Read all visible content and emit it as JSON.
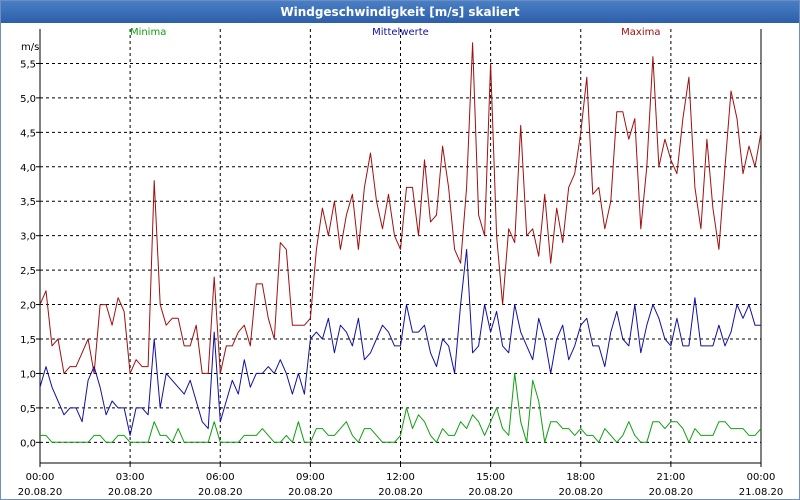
{
  "window": {
    "title": "Windgeschwindigkeit [m/s] skaliert"
  },
  "chart_data": {
    "type": "line",
    "title": "Windgeschwindigkeit [m/s] skaliert",
    "ylabel": "m/s",
    "xlabel": "",
    "ylim": [
      -0.3,
      6.0
    ],
    "xlim": [
      0,
      24
    ],
    "grid": true,
    "y_ticks": [
      {
        "value": 0.0,
        "label": "0,0"
      },
      {
        "value": 0.5,
        "label": "0,5"
      },
      {
        "value": 1.0,
        "label": "1,0"
      },
      {
        "value": 1.5,
        "label": "1,5"
      },
      {
        "value": 2.0,
        "label": "2,0"
      },
      {
        "value": 2.5,
        "label": "2,5"
      },
      {
        "value": 3.0,
        "label": "3,0"
      },
      {
        "value": 3.5,
        "label": "3,5"
      },
      {
        "value": 4.0,
        "label": "4,0"
      },
      {
        "value": 4.5,
        "label": "4,5"
      },
      {
        "value": 5.0,
        "label": "5,0"
      },
      {
        "value": 5.5,
        "label": "5,5"
      }
    ],
    "x_ticks": [
      {
        "value": 0,
        "time": "00:00",
        "date": "20.08.20"
      },
      {
        "value": 3,
        "time": "03:00",
        "date": "20.08.20"
      },
      {
        "value": 6,
        "time": "06:00",
        "date": "20.08.20"
      },
      {
        "value": 9,
        "time": "09:00",
        "date": "20.08.20"
      },
      {
        "value": 12,
        "time": "12:00",
        "date": "20.08.20"
      },
      {
        "value": 15,
        "time": "15:00",
        "date": "20.08.20"
      },
      {
        "value": 18,
        "time": "18:00",
        "date": "20.08.20"
      },
      {
        "value": 21,
        "time": "21:00",
        "date": "20.08.20"
      },
      {
        "value": 24,
        "time": "00:00",
        "date": "21.08.20"
      }
    ],
    "series": [
      {
        "name": "Maxima",
        "color": "#a01010",
        "x": [
          0,
          0.2,
          0.4,
          0.6,
          0.8,
          1.0,
          1.2,
          1.4,
          1.6,
          1.8,
          2.0,
          2.2,
          2.4,
          2.6,
          2.8,
          3.0,
          3.2,
          3.4,
          3.6,
          3.8,
          4.0,
          4.2,
          4.4,
          4.6,
          4.8,
          5.0,
          5.2,
          5.4,
          5.6,
          5.8,
          6.0,
          6.2,
          6.4,
          6.6,
          6.8,
          7.0,
          7.2,
          7.4,
          7.6,
          7.8,
          8.0,
          8.2,
          8.4,
          8.6,
          8.8,
          9.0,
          9.2,
          9.4,
          9.6,
          9.8,
          10.0,
          10.2,
          10.4,
          10.6,
          10.8,
          11.0,
          11.2,
          11.4,
          11.6,
          11.8,
          12.0,
          12.2,
          12.4,
          12.6,
          12.8,
          13.0,
          13.2,
          13.4,
          13.6,
          13.8,
          14.0,
          14.2,
          14.4,
          14.6,
          14.8,
          15.0,
          15.2,
          15.4,
          15.6,
          15.8,
          16.0,
          16.2,
          16.4,
          16.6,
          16.8,
          17.0,
          17.2,
          17.4,
          17.6,
          17.8,
          18.0,
          18.2,
          18.4,
          18.6,
          18.8,
          19.0,
          19.2,
          19.4,
          19.6,
          19.8,
          20.0,
          20.2,
          20.4,
          20.6,
          20.8,
          21.0,
          21.2,
          21.4,
          21.6,
          21.8,
          22.0,
          22.2,
          22.4,
          22.6,
          22.8,
          23.0,
          23.2,
          23.4,
          23.6,
          23.8,
          24.0
        ],
        "values": [
          2.0,
          2.2,
          1.4,
          1.5,
          1.0,
          1.1,
          1.1,
          1.3,
          1.5,
          1.0,
          2.0,
          2.0,
          1.7,
          2.1,
          1.9,
          1.0,
          1.2,
          1.1,
          1.1,
          3.8,
          2.0,
          1.7,
          1.8,
          1.8,
          1.4,
          1.4,
          1.7,
          1.0,
          1.0,
          2.4,
          1.0,
          1.4,
          1.4,
          1.6,
          1.7,
          1.4,
          2.3,
          2.3,
          1.8,
          1.5,
          2.9,
          2.8,
          1.7,
          1.7,
          1.7,
          1.8,
          2.8,
          3.4,
          3.0,
          3.5,
          2.8,
          3.3,
          3.6,
          2.8,
          3.7,
          4.2,
          3.5,
          3.1,
          3.6,
          3.0,
          2.8,
          3.7,
          3.7,
          3.0,
          4.1,
          3.2,
          3.3,
          4.3,
          3.7,
          2.8,
          2.6,
          3.7,
          5.8,
          3.3,
          3.0,
          5.5,
          3.0,
          2.0,
          3.1,
          2.9,
          4.6,
          3.0,
          3.1,
          2.7,
          3.6,
          2.6,
          3.4,
          2.9,
          3.7,
          3.9,
          4.5,
          5.3,
          3.6,
          3.7,
          3.1,
          3.5,
          4.8,
          4.8,
          4.4,
          4.7,
          3.1,
          4.0,
          5.6,
          4.0,
          4.4,
          4.1,
          3.9,
          4.7,
          5.3,
          3.7,
          3.1,
          4.4,
          3.4,
          2.8,
          4.0,
          5.1,
          4.7,
          3.9,
          4.3,
          4.0,
          4.5
        ]
      },
      {
        "name": "Mittelwerte",
        "color": "#1010a0",
        "x": [
          0,
          0.2,
          0.4,
          0.6,
          0.8,
          1.0,
          1.2,
          1.4,
          1.6,
          1.8,
          2.0,
          2.2,
          2.4,
          2.6,
          2.8,
          3.0,
          3.2,
          3.4,
          3.6,
          3.8,
          4.0,
          4.2,
          4.4,
          4.6,
          4.8,
          5.0,
          5.2,
          5.4,
          5.6,
          5.8,
          6.0,
          6.2,
          6.4,
          6.6,
          6.8,
          7.0,
          7.2,
          7.4,
          7.6,
          7.8,
          8.0,
          8.2,
          8.4,
          8.6,
          8.8,
          9.0,
          9.2,
          9.4,
          9.6,
          9.8,
          10.0,
          10.2,
          10.4,
          10.6,
          10.8,
          11.0,
          11.2,
          11.4,
          11.6,
          11.8,
          12.0,
          12.2,
          12.4,
          12.6,
          12.8,
          13.0,
          13.2,
          13.4,
          13.6,
          13.8,
          14.0,
          14.2,
          14.4,
          14.6,
          14.8,
          15.0,
          15.2,
          15.4,
          15.6,
          15.8,
          16.0,
          16.2,
          16.4,
          16.6,
          16.8,
          17.0,
          17.2,
          17.4,
          17.6,
          17.8,
          18.0,
          18.2,
          18.4,
          18.6,
          18.8,
          19.0,
          19.2,
          19.4,
          19.6,
          19.8,
          20.0,
          20.2,
          20.4,
          20.6,
          20.8,
          21.0,
          21.2,
          21.4,
          21.6,
          21.8,
          22.0,
          22.2,
          22.4,
          22.6,
          22.8,
          23.0,
          23.2,
          23.4,
          23.6,
          23.8,
          24.0
        ],
        "values": [
          0.8,
          1.1,
          0.8,
          0.6,
          0.4,
          0.5,
          0.5,
          0.3,
          0.9,
          1.1,
          0.8,
          0.4,
          0.6,
          0.5,
          0.5,
          0.1,
          0.5,
          0.5,
          0.4,
          1.5,
          0.5,
          1.0,
          0.9,
          0.8,
          0.7,
          0.9,
          0.6,
          0.3,
          0.2,
          1.6,
          0.3,
          0.6,
          0.9,
          0.7,
          1.2,
          0.8,
          1.0,
          1.0,
          1.1,
          1.0,
          1.2,
          1.0,
          0.7,
          1.0,
          0.7,
          1.5,
          1.6,
          1.5,
          1.8,
          1.3,
          1.7,
          1.6,
          1.4,
          1.8,
          1.2,
          1.3,
          1.5,
          1.7,
          1.6,
          1.4,
          1.4,
          2.0,
          1.6,
          1.6,
          1.7,
          1.3,
          1.1,
          1.5,
          1.4,
          1.0,
          2.0,
          2.8,
          1.3,
          1.4,
          2.0,
          1.6,
          1.9,
          1.4,
          1.3,
          2.0,
          1.6,
          1.4,
          1.2,
          1.8,
          1.5,
          1.0,
          1.5,
          1.7,
          1.2,
          1.4,
          1.7,
          1.8,
          1.4,
          1.4,
          1.1,
          1.6,
          1.9,
          1.5,
          1.4,
          2.0,
          1.3,
          1.7,
          2.0,
          1.8,
          1.5,
          1.4,
          1.8,
          1.4,
          1.4,
          2.1,
          1.4,
          1.4,
          1.4,
          1.7,
          1.4,
          1.6,
          2.0,
          1.8,
          2.0,
          1.7,
          1.7
        ]
      },
      {
        "name": "Minima",
        "color": "#10a010",
        "x": [
          0,
          0.2,
          0.4,
          0.6,
          0.8,
          1.0,
          1.2,
          1.4,
          1.6,
          1.8,
          2.0,
          2.2,
          2.4,
          2.6,
          2.8,
          3.0,
          3.2,
          3.4,
          3.6,
          3.8,
          4.0,
          4.2,
          4.4,
          4.6,
          4.8,
          5.0,
          5.2,
          5.4,
          5.6,
          5.8,
          6.0,
          6.2,
          6.4,
          6.6,
          6.8,
          7.0,
          7.2,
          7.4,
          7.6,
          7.8,
          8.0,
          8.2,
          8.4,
          8.6,
          8.8,
          9.0,
          9.2,
          9.4,
          9.6,
          9.8,
          10.0,
          10.2,
          10.4,
          10.6,
          10.8,
          11.0,
          11.2,
          11.4,
          11.6,
          11.8,
          12.0,
          12.2,
          12.4,
          12.6,
          12.8,
          13.0,
          13.2,
          13.4,
          13.6,
          13.8,
          14.0,
          14.2,
          14.4,
          14.6,
          14.8,
          15.0,
          15.2,
          15.4,
          15.6,
          15.8,
          16.0,
          16.2,
          16.4,
          16.6,
          16.8,
          17.0,
          17.2,
          17.4,
          17.6,
          17.8,
          18.0,
          18.2,
          18.4,
          18.6,
          18.8,
          19.0,
          19.2,
          19.4,
          19.6,
          19.8,
          20.0,
          20.2,
          20.4,
          20.6,
          20.8,
          21.0,
          21.2,
          21.4,
          21.6,
          21.8,
          22.0,
          22.2,
          22.4,
          22.6,
          22.8,
          23.0,
          23.2,
          23.4,
          23.6,
          23.8,
          24.0
        ],
        "values": [
          0.1,
          0.1,
          0.0,
          0.0,
          0.0,
          0.0,
          0.0,
          0.0,
          0.0,
          0.1,
          0.1,
          0.0,
          0.0,
          0.1,
          0.1,
          0.0,
          0.0,
          0.0,
          0.0,
          0.3,
          0.1,
          0.1,
          0.0,
          0.2,
          0.0,
          0.0,
          0.0,
          0.0,
          0.0,
          0.3,
          0.0,
          0.0,
          0.0,
          0.0,
          0.1,
          0.1,
          0.1,
          0.2,
          0.1,
          0.0,
          0.0,
          0.1,
          0.0,
          0.3,
          0.0,
          0.0,
          0.2,
          0.2,
          0.1,
          0.1,
          0.2,
          0.3,
          0.1,
          0.0,
          0.2,
          0.2,
          0.1,
          0.0,
          0.0,
          0.0,
          0.1,
          0.5,
          0.2,
          0.4,
          0.3,
          0.1,
          0.0,
          0.2,
          0.1,
          0.1,
          0.3,
          0.2,
          0.4,
          0.3,
          0.1,
          0.3,
          0.5,
          0.2,
          0.1,
          1.0,
          0.3,
          0.0,
          0.9,
          0.6,
          0.0,
          0.3,
          0.3,
          0.2,
          0.2,
          0.1,
          0.2,
          0.1,
          0.1,
          0.0,
          0.2,
          0.1,
          0.0,
          0.1,
          0.3,
          0.1,
          0.0,
          0.0,
          0.3,
          0.3,
          0.2,
          0.3,
          0.3,
          0.2,
          0.0,
          0.2,
          0.1,
          0.1,
          0.1,
          0.3,
          0.3,
          0.2,
          0.2,
          0.2,
          0.1,
          0.1,
          0.2
        ]
      }
    ]
  }
}
